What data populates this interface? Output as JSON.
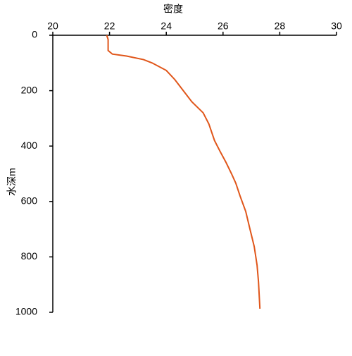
{
  "chart_data": {
    "type": "line",
    "x_label": "密度",
    "y_label": "水深m",
    "xlim": [
      20,
      30
    ],
    "xticks": [
      20,
      22,
      24,
      26,
      28,
      30
    ],
    "ylim": [
      0,
      1000
    ],
    "yticks": [
      0,
      200,
      400,
      600,
      800,
      1000
    ],
    "y_inverted": true,
    "x_axis_top": true,
    "grid": false,
    "label_color": "#d2691e",
    "series": [
      {
        "color": "#e0561a",
        "x": [
          21.9,
          21.95,
          21.95,
          22.1,
          22.6,
          23.2,
          23.5,
          24.0,
          24.3,
          24.6,
          24.9,
          25.3,
          25.5,
          25.7,
          25.9,
          26.1,
          26.3,
          26.45,
          26.6,
          26.8,
          26.95,
          27.1,
          27.2,
          27.25,
          27.3
        ],
        "values": [
          0,
          15,
          55,
          68,
          75,
          88,
          100,
          127,
          160,
          200,
          240,
          280,
          320,
          380,
          420,
          458,
          500,
          534,
          580,
          636,
          700,
          763,
          830,
          890,
          987
        ]
      }
    ]
  }
}
